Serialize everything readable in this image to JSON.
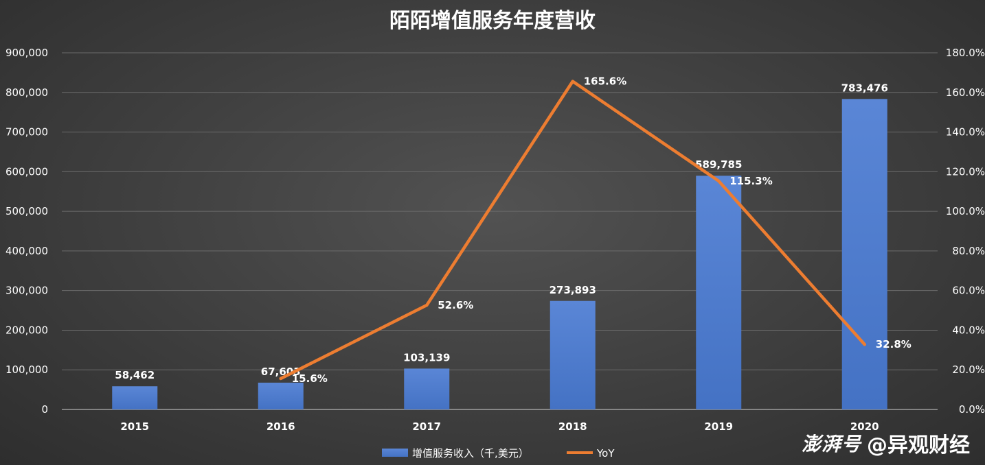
{
  "chart_data": {
    "type": "bar",
    "title": "陌陌增值服务年度营收",
    "categories": [
      "2015",
      "2016",
      "2017",
      "2018",
      "2019",
      "2020"
    ],
    "series": [
      {
        "name": "增值服务收入（千,美元）",
        "type": "bar",
        "axis": "left",
        "color": "#4472c4",
        "values": [
          58462,
          67603,
          103139,
          273893,
          589785,
          783476
        ],
        "labels": [
          "58,462",
          "67,603",
          "103,139",
          "273,893",
          "589,785",
          "783,476"
        ]
      },
      {
        "name": "YoY",
        "type": "line",
        "axis": "right",
        "color": "#ed7d31",
        "x": [
          "2016",
          "2017",
          "2018",
          "2019",
          "2020"
        ],
        "values": [
          15.6,
          52.6,
          165.6,
          115.3,
          32.8
        ],
        "labels": [
          "15.6%",
          "52.6%",
          "165.6%",
          "115.3%",
          "32.8%"
        ]
      }
    ],
    "y_left": {
      "lim": [
        0,
        900000
      ],
      "ticks": [
        "0",
        "100,000",
        "200,000",
        "300,000",
        "400,000",
        "500,000",
        "600,000",
        "700,000",
        "800,000",
        "900,000"
      ]
    },
    "y_right": {
      "lim": [
        0,
        180
      ],
      "ticks": [
        "0.0%",
        "20.0%",
        "40.0%",
        "60.0%",
        "80.0%",
        "100.0%",
        "120.0%",
        "140.0%",
        "160.0%",
        "180.0%"
      ]
    },
    "grid": true,
    "legend": "bottom"
  },
  "watermark": {
    "brand": "澎湃号",
    "handle": "@异观财经"
  }
}
